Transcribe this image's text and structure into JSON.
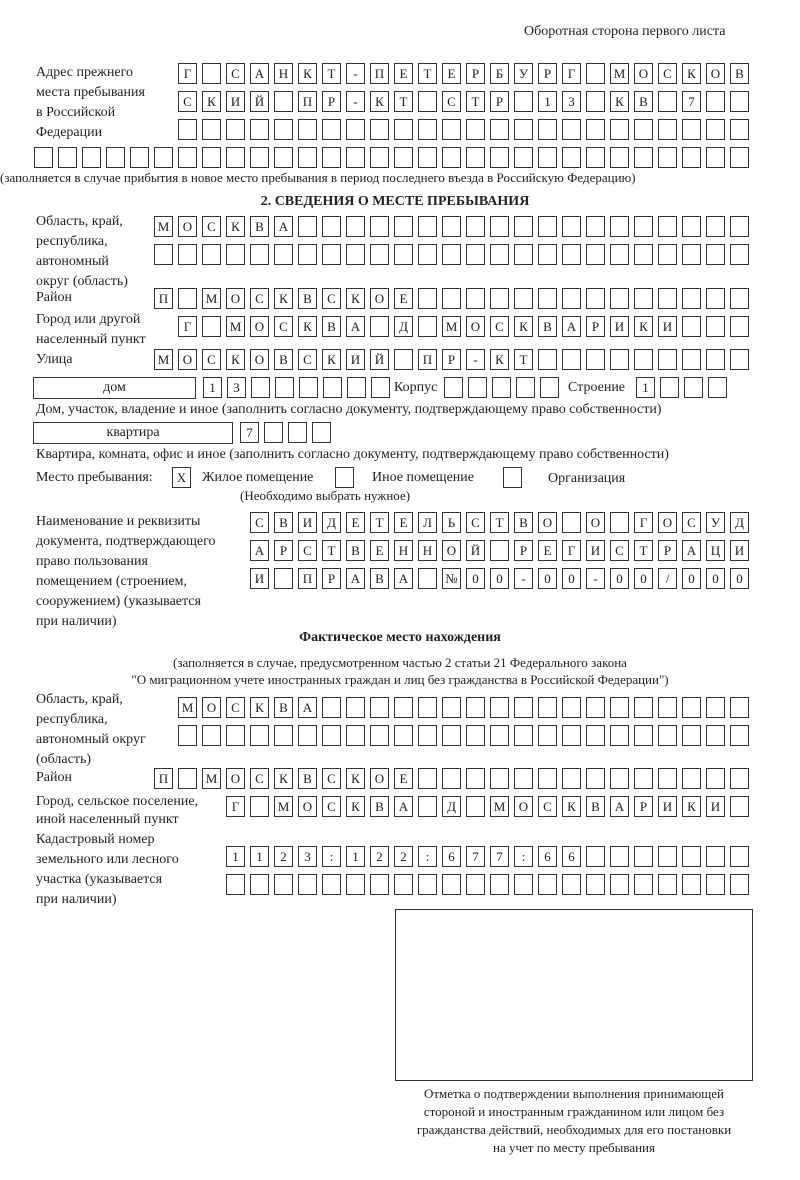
{
  "header": {
    "page_side": "Оборотная сторона первого листа"
  },
  "previous_address": {
    "label": [
      "Адрес прежнего",
      "места пребывания",
      "в Российской",
      "Федерации"
    ],
    "rows": [
      [
        "Г",
        "",
        "С",
        "А",
        "Н",
        "К",
        "Т",
        "-",
        "П",
        "Е",
        "Т",
        "Е",
        "Р",
        "Б",
        "У",
        "Р",
        "Г",
        "",
        "М",
        "О",
        "С",
        "К",
        "О",
        "В"
      ],
      [
        "С",
        "К",
        "И",
        "Й",
        "",
        "П",
        "Р",
        "-",
        "К",
        "Т",
        "",
        "С",
        "Т",
        "Р",
        "",
        "1",
        "3",
        "",
        "К",
        "В",
        "",
        "7",
        "",
        ""
      ],
      [
        "",
        "",
        "",
        "",
        "",
        "",
        "",
        "",
        "",
        "",
        "",
        "",
        "",
        "",
        "",
        "",
        "",
        "",
        "",
        "",
        "",
        "",
        "",
        ""
      ],
      [
        "",
        "",
        "",
        "",
        "",
        "",
        "",
        "",
        "",
        "",
        "",
        "",
        "",
        "",
        "",
        "",
        "",
        "",
        "",
        "",
        "",
        "",
        "",
        "",
        "",
        "",
        "",
        "",
        "",
        ""
      ]
    ],
    "note": "(заполняется в случае прибытия в новое место пребывания в период последнего въезда в Российскую Федерацию)"
  },
  "section2": {
    "title": "2. СВЕДЕНИЯ О МЕСТЕ ПРЕБЫВАНИЯ",
    "region_label": [
      "Область, край,",
      "республика,",
      "автономный",
      "округ (область)"
    ],
    "region_rows": [
      [
        "М",
        "О",
        "С",
        "К",
        "В",
        "А",
        "",
        "",
        "",
        "",
        "",
        "",
        "",
        "",
        "",
        "",
        "",
        "",
        "",
        "",
        "",
        "",
        "",
        "",
        ""
      ],
      [
        "",
        "",
        "",
        "",
        "",
        "",
        "",
        "",
        "",
        "",
        "",
        "",
        "",
        "",
        "",
        "",
        "",
        "",
        "",
        "",
        "",
        "",
        "",
        "",
        ""
      ]
    ],
    "district_label": "Район",
    "district_row": [
      "П",
      "",
      "М",
      "О",
      "С",
      "К",
      "В",
      "С",
      "К",
      "О",
      "Е",
      "",
      "",
      "",
      "",
      "",
      "",
      "",
      "",
      "",
      "",
      "",
      "",
      "",
      ""
    ],
    "city_label": [
      "Город или другой",
      "населенный пункт"
    ],
    "city_row": [
      "Г",
      "",
      "М",
      "О",
      "С",
      "К",
      "В",
      "А",
      "",
      "Д",
      "",
      "М",
      "О",
      "С",
      "К",
      "В",
      "А",
      "Р",
      "И",
      "К",
      "И",
      "",
      "",
      ""
    ],
    "street_label": "Улица",
    "street_row": [
      "М",
      "О",
      "С",
      "К",
      "О",
      "В",
      "С",
      "К",
      "И",
      "Й",
      "",
      "П",
      "Р",
      "-",
      "К",
      "Т",
      "",
      "",
      "",
      "",
      "",
      "",
      "",
      "",
      ""
    ],
    "house_type": "дом",
    "house_row": [
      "1",
      "3",
      "",
      "",
      "",
      "",
      "",
      ""
    ],
    "korpus_label": "Корпус",
    "korpus_row": [
      "",
      "",
      "",
      "",
      ""
    ],
    "building_label": "Строение",
    "building_row": [
      "1",
      "",
      "",
      ""
    ],
    "house_note": "Дом, участок, владение и иное (заполнить согласно документу, подтверждающему право собственности)",
    "apartment_type": "квартира",
    "apartment_row": [
      "7",
      "",
      "",
      ""
    ],
    "apartment_note": "Квартира, комната, офис и иное (заполнить согласно документу, подтверждающему право собственности)",
    "stay_label": "Место пребывания:",
    "options": [
      {
        "label": "Жилое помещение",
        "mark": "X"
      },
      {
        "label": "Иное помещение",
        "mark": ""
      },
      {
        "label": "Организация",
        "mark": ""
      }
    ],
    "options_note": "(Необходимо выбрать нужное)",
    "doc_label": [
      "Наименование и реквизиты",
      "документа, подтверждающего",
      "право пользования",
      "помещением (строением,",
      "сооружением) (указывается",
      "при наличии)"
    ],
    "doc_rows": [
      [
        "С",
        "В",
        "И",
        "Д",
        "Е",
        "Т",
        "Е",
        "Л",
        "Ь",
        "С",
        "Т",
        "В",
        "О",
        "",
        "О",
        "",
        "Г",
        "О",
        "С",
        "У",
        "Д"
      ],
      [
        "А",
        "Р",
        "С",
        "Т",
        "В",
        "Е",
        "Н",
        "Н",
        "О",
        "Й",
        "",
        "Р",
        "Е",
        "Г",
        "И",
        "С",
        "Т",
        "Р",
        "А",
        "Ц",
        "И"
      ],
      [
        "И",
        "",
        "П",
        "Р",
        "А",
        "В",
        "А",
        "",
        "№",
        "0",
        "0",
        "-",
        "0",
        "0",
        "-",
        "0",
        "0",
        "/",
        "0",
        "0",
        "0"
      ]
    ]
  },
  "actual": {
    "title": "Фактическое место нахождения",
    "note1": "(заполняется в случае, предусмотренном частью 2 статьи 21 Федерального закона",
    "note2": "\"О миграционном учете иностранных граждан и лиц без гражданства в Российской Федерации\")",
    "region_label": [
      "Область, край,",
      "республика,",
      "автономный округ",
      "(область)"
    ],
    "region_rows": [
      [
        "М",
        "О",
        "С",
        "К",
        "В",
        "А",
        "",
        "",
        "",
        "",
        "",
        "",
        "",
        "",
        "",
        "",
        "",
        "",
        "",
        "",
        "",
        "",
        "",
        ""
      ],
      [
        "",
        "",
        "",
        "",
        "",
        "",
        "",
        "",
        "",
        "",
        "",
        "",
        "",
        "",
        "",
        "",
        "",
        "",
        "",
        "",
        "",
        "",
        "",
        ""
      ]
    ],
    "district_label": "Район",
    "district_row": [
      "П",
      "",
      "М",
      "О",
      "С",
      "К",
      "В",
      "С",
      "К",
      "О",
      "Е",
      "",
      "",
      "",
      "",
      "",
      "",
      "",
      "",
      "",
      "",
      "",
      "",
      "",
      ""
    ],
    "city_label": [
      "Город, сельское поселение,",
      "иной населенный пункт"
    ],
    "city_row": [
      "Г",
      "",
      "М",
      "О",
      "С",
      "К",
      "В",
      "А",
      "",
      "Д",
      "",
      "М",
      "О",
      "С",
      "К",
      "В",
      "А",
      "Р",
      "И",
      "К",
      "И",
      ""
    ],
    "cadastral_label": [
      "Кадастровый номер",
      "земельного или лесного",
      "участка (указывается",
      "при наличии)"
    ],
    "cadastral_rows": [
      [
        "1",
        "1",
        "2",
        "3",
        ":",
        "1",
        "2",
        "2",
        ":",
        "6",
        "7",
        "7",
        ":",
        "6",
        "6",
        "",
        "",
        "",
        "",
        "",
        "",
        ""
      ],
      [
        "",
        "",
        "",
        "",
        "",
        "",
        "",
        "",
        "",
        "",
        "",
        "",
        "",
        "",
        "",
        "",
        "",
        "",
        "",
        "",
        "",
        ""
      ]
    ]
  },
  "confirmation": {
    "caption": [
      "Отметка о подтверждении выполнения принимающей",
      "стороной и иностранным гражданином или лицом без",
      "гражданства действий, необходимых для его постановки",
      "на учет по месту пребывания"
    ]
  }
}
